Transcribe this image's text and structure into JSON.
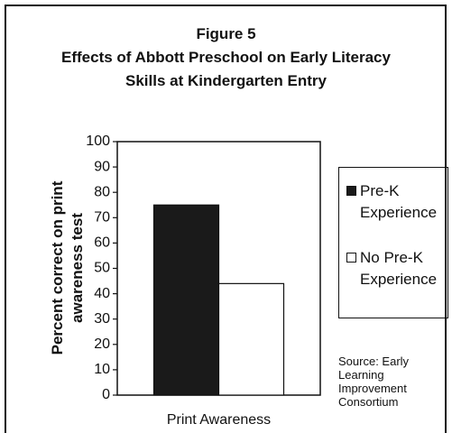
{
  "chart_data": {
    "type": "bar",
    "title": "Figure 5",
    "subtitle": "Effects of Abbott Preschool on Early Literacy Skills at Kindergarten Entry",
    "ylabel": "Percent correct on print awareness test",
    "categories": [
      "Print Awareness"
    ],
    "series": [
      {
        "name": "Pre-K Experience",
        "color": "#1a1a1a",
        "values": [
          75
        ]
      },
      {
        "name": "No Pre-K Experience",
        "color": "#ffffff",
        "values": [
          44
        ]
      }
    ],
    "ylim": [
      0,
      100
    ],
    "yticks": [
      0,
      10,
      20,
      30,
      40,
      50,
      60,
      70,
      80,
      90,
      100
    ],
    "grid": false,
    "annotation": "Source: Early Learning Improvement Consortium"
  }
}
